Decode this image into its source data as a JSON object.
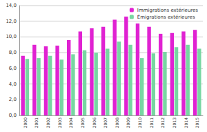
{
  "chart_data": {
    "type": "bar",
    "categories": [
      "2000",
      "2001",
      "2002",
      "2003",
      "2004",
      "2005",
      "2006",
      "2007",
      "2008",
      "2009",
      "2010",
      "2011",
      "2012",
      "2013",
      "2014",
      "2015"
    ],
    "series": [
      {
        "name": "Immigrations extérieures",
        "color": "#e022d2",
        "values": [
          7.6,
          9.0,
          8.8,
          8.9,
          9.6,
          10.7,
          11.1,
          11.3,
          12.2,
          12.6,
          11.7,
          11.3,
          10.4,
          10.5,
          10.7,
          10.9
        ]
      },
      {
        "name": "Émigrations extérieures",
        "color": "#78d6a2",
        "values": [
          7.2,
          7.3,
          7.6,
          7.1,
          7.8,
          8.3,
          8.0,
          8.5,
          9.4,
          9.0,
          7.3,
          7.9,
          8.1,
          8.7,
          9.0,
          8.5
        ]
      }
    ],
    "ylim": [
      0,
      14
    ],
    "yticks": [
      {
        "value": 0,
        "label": "0,0"
      },
      {
        "value": 2,
        "label": "2,0"
      },
      {
        "value": 4,
        "label": "4,0"
      },
      {
        "value": 6,
        "label": "6,0"
      },
      {
        "value": 8,
        "label": "8,0"
      },
      {
        "value": 10,
        "label": "10,0"
      },
      {
        "value": 12,
        "label": "12,0"
      },
      {
        "value": 14,
        "label": "14,0"
      }
    ],
    "grid": true,
    "legend": "top-right"
  }
}
